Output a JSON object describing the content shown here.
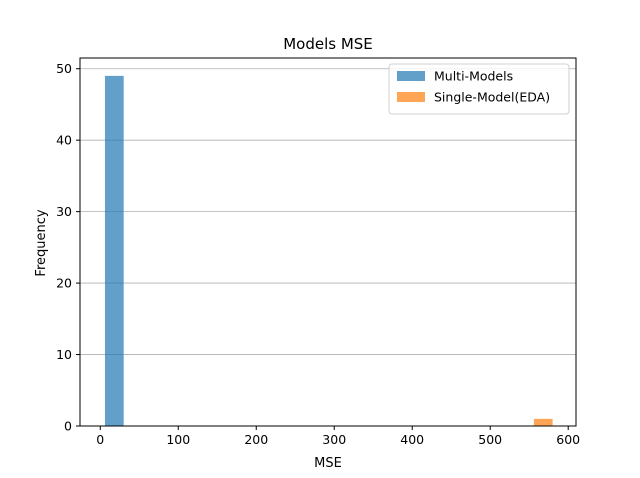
{
  "chart_data": {
    "type": "bar",
    "title": "Models MSE",
    "xlabel": "MSE",
    "ylabel": "Frequency",
    "xlim": [
      -26,
      610
    ],
    "ylim": [
      0,
      51.5
    ],
    "xticks": [
      0,
      100,
      200,
      300,
      400,
      500,
      600
    ],
    "yticks": [
      0,
      10,
      20,
      30,
      40,
      50
    ],
    "grid": {
      "y": true,
      "x": false,
      "color": "#b0b0b0"
    },
    "legend_position": "top-right",
    "series": [
      {
        "name": "Multi-Models",
        "color": "#1f77b4",
        "opacity": 0.7,
        "bins": [
          {
            "x0": 6,
            "x1": 30,
            "count": 49
          }
        ]
      },
      {
        "name": "Single-Model(EDA)",
        "color": "#ff7f0e",
        "opacity": 0.7,
        "bins": [
          {
            "x0": 556,
            "x1": 580,
            "count": 1
          }
        ]
      }
    ]
  }
}
